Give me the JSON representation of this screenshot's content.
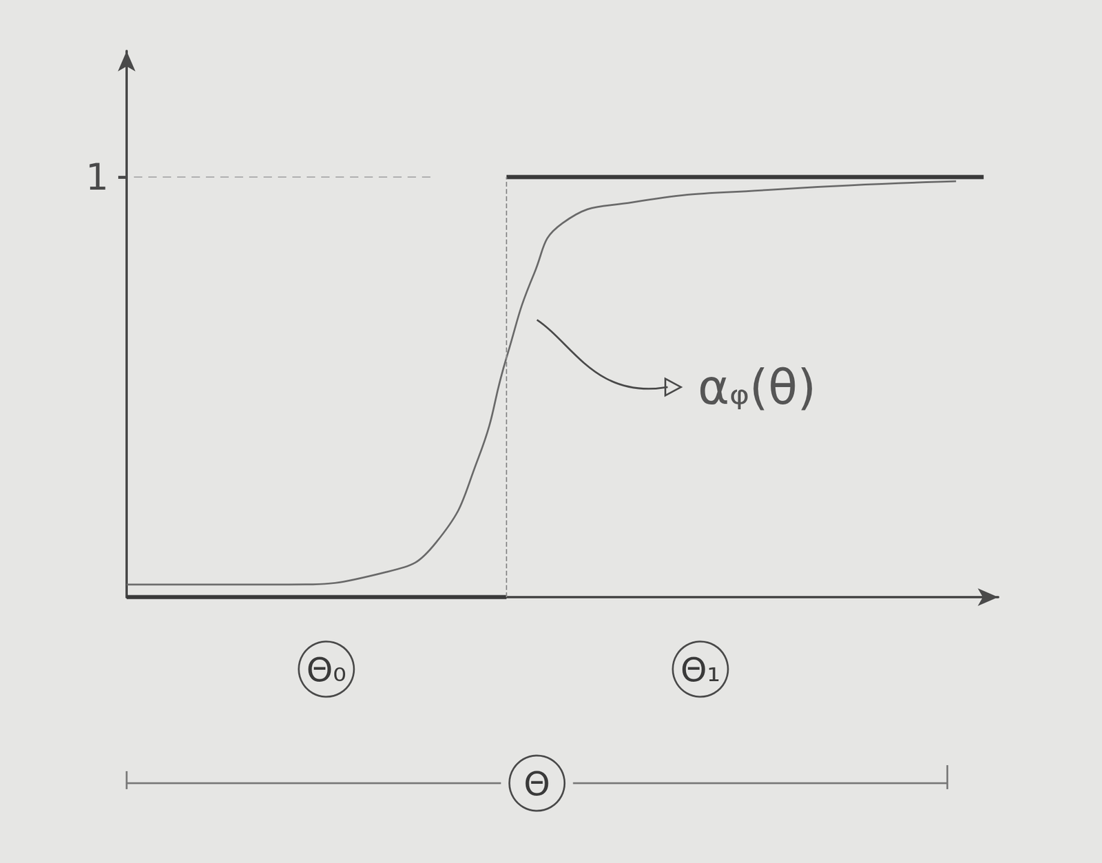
{
  "chart_data": {
    "type": "line",
    "xlim": [
      0,
      12
    ],
    "ylim": [
      0,
      1.3
    ],
    "yticks": [
      1
    ],
    "tick_labels": "y",
    "grid": false,
    "series": [
      {
        "x": [
          0,
          2.13,
          3.58,
          4.26,
          4.84,
          5.23,
          5.61,
          6.0,
          6.97,
          8.9,
          11.42
        ],
        "values": [
          0.03,
          0.03,
          0.06,
          0.13,
          0.33,
          0.57,
          0.77,
          0.89,
          0.94,
          0.97,
          0.99
        ],
        "color": "#6a6a6a",
        "line_style": "solid"
      },
      {
        "x": [
          0,
          5.23,
          5.23,
          5.23,
          11.8
        ],
        "values": [
          0,
          0,
          null,
          1,
          1
        ],
        "color": "#3a3a3a",
        "line_style": "solid"
      },
      {
        "x": [
          5.23,
          5.23
        ],
        "values": [
          0,
          1
        ],
        "color": "#8a8a8a",
        "line_style": "dashed"
      }
    ],
    "annotations": [
      "αᵩ(θ)",
      "Θ₀",
      "Θ₁",
      "Θ"
    ]
  }
}
